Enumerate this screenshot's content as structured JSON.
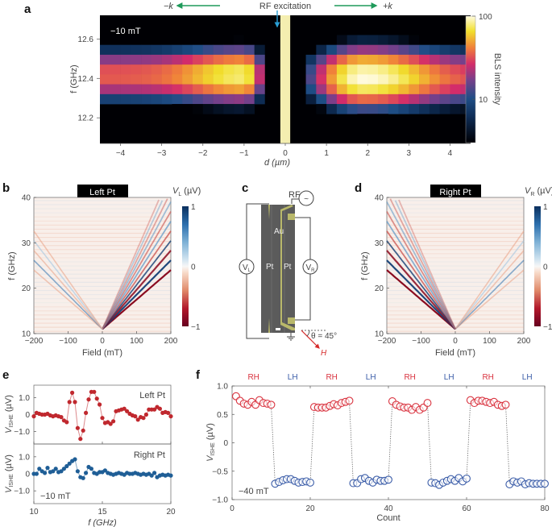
{
  "panel_labels": [
    "a",
    "b",
    "c",
    "d",
    "e",
    "f"
  ],
  "chart_data": [
    {
      "panel": "a",
      "type": "heatmap",
      "title": "",
      "xlabel": "d (µm)",
      "ylabel": "f (GHz)",
      "xlim": [
        -4.5,
        4.5
      ],
      "ylim": [
        12.07,
        12.72
      ],
      "xticks": [
        -4,
        -3,
        -2,
        -1,
        0,
        1,
        2,
        3,
        4
      ],
      "yticks": [
        12.2,
        12.4,
        12.6
      ],
      "annotations": {
        "field": "−10 mT",
        "rf_label": "RF excitation",
        "minus_k": "−k",
        "plus_k": "+k"
      },
      "colorbar": {
        "label": "BLS intensity",
        "scale": "log",
        "range": [
          3,
          100
        ],
        "ticks": [
          10,
          100
        ]
      },
      "excitation_strip_d": [
        -0.12,
        0.12
      ],
      "cell_width_um": 0.25,
      "rows_f": [
        12.69,
        12.64,
        12.59,
        12.54,
        12.49,
        12.44,
        12.39,
        12.34,
        12.29,
        12.24,
        12.19,
        12.14,
        12.09
      ],
      "left_profile": {
        "d_range": [
          -4.5,
          -0.5
        ],
        "peak_d": -1.0,
        "peak_f": 12.41,
        "peak": 80,
        "tail": 35,
        "f_width": 0.1
      },
      "right_profile": {
        "d_range": [
          0.5,
          4.5
        ],
        "peak_d": 1.9,
        "peak_f": 12.4,
        "peak": 100,
        "tail": 30,
        "f_width": 0.11
      }
    },
    {
      "panel": "b",
      "type": "heatmap",
      "title": "Left Pt",
      "xlabel": "Field (mT)",
      "ylabel": "f (GHz)",
      "xlim": [
        -200,
        200
      ],
      "ylim": [
        10,
        40
      ],
      "xticks": [
        -200,
        -100,
        0,
        100,
        200
      ],
      "yticks": [
        10,
        20,
        30,
        40
      ],
      "colorbar": {
        "label": "V_L (µV)",
        "label_main": "V",
        "label_sub": "L",
        "label_unit": " (µV)",
        "range": [
          -1,
          1
        ],
        "ticks": [
          1,
          0,
          -1
        ]
      },
      "f_min_GHz": 11,
      "dominant_side": "positive-field"
    },
    {
      "panel": "d",
      "type": "heatmap",
      "title": "Right Pt",
      "xlabel": "Field (mT)",
      "ylabel": "f (GHz)",
      "xlim": [
        -200,
        200
      ],
      "ylim": [
        10,
        40
      ],
      "xticks": [
        -200,
        -100,
        0,
        100,
        200
      ],
      "yticks": [
        10,
        20,
        30,
        40
      ],
      "colorbar": {
        "label": "V_R (µV)",
        "label_main": "V",
        "label_sub": "R",
        "label_unit": " (µV)",
        "range": [
          -1,
          1
        ],
        "ticks": [
          1,
          0,
          -1
        ]
      },
      "f_min_GHz": 11,
      "dominant_side": "negative-field"
    },
    {
      "panel": "e",
      "type": "line",
      "xlabel": "f (GHz)",
      "ylabel": "V_ISHE (µV)",
      "xlim": [
        10,
        20
      ],
      "ylim": [
        -1.75,
        1.75
      ],
      "xticks": [
        10,
        15,
        20
      ],
      "yticks": [
        1.0,
        0,
        -1.0
      ],
      "annotation": "−10 mT",
      "series": [
        {
          "name": "Left Pt",
          "color": "#c0282e",
          "x": [
            10.0,
            10.2,
            10.4,
            10.6,
            10.8,
            11.0,
            11.2,
            11.4,
            11.6,
            11.8,
            12.0,
            12.2,
            12.4,
            12.6,
            12.8,
            13.0,
            13.2,
            13.4,
            13.6,
            13.8,
            14.0,
            14.2,
            14.4,
            14.6,
            14.8,
            15.0,
            15.2,
            15.4,
            15.6,
            15.8,
            16.0,
            16.2,
            16.4,
            16.6,
            16.8,
            17.0,
            17.2,
            17.4,
            17.6,
            17.8,
            18.0,
            18.2,
            18.4,
            18.6,
            18.8,
            19.0,
            19.2,
            19.4,
            19.6,
            19.8,
            20.0
          ],
          "y": [
            -0.1,
            0.1,
            0.05,
            0.0,
            0.0,
            0.05,
            -0.05,
            -0.1,
            -0.05,
            -0.1,
            -0.15,
            -0.35,
            -0.45,
            0.75,
            1.3,
            0.75,
            -0.8,
            -1.45,
            -0.95,
            0.1,
            0.9,
            1.35,
            1.35,
            0.95,
            0.6,
            -0.2,
            -0.5,
            -0.45,
            -0.55,
            -0.4,
            0.2,
            0.25,
            0.3,
            0.35,
            0.2,
            0.05,
            -0.05,
            -0.1,
            -0.3,
            -0.15,
            -0.2,
            0.0,
            0.3,
            0.3,
            0.3,
            0.45,
            0.35,
            0.1,
            0.15,
            0.1,
            -0.1
          ]
        },
        {
          "name": "Right Pt",
          "color": "#1f5e96",
          "x": [
            10.0,
            10.2,
            10.4,
            10.6,
            10.8,
            11.0,
            11.2,
            11.4,
            11.6,
            11.8,
            12.0,
            12.2,
            12.4,
            12.6,
            12.8,
            13.0,
            13.2,
            13.4,
            13.6,
            13.8,
            14.0,
            14.2,
            14.4,
            14.6,
            14.8,
            15.0,
            15.2,
            15.4,
            15.6,
            15.8,
            16.0,
            16.2,
            16.4,
            16.6,
            16.8,
            17.0,
            17.2,
            17.4,
            17.6,
            17.8,
            18.0,
            18.2,
            18.4,
            18.6,
            18.8,
            19.0,
            19.2,
            19.4,
            19.6,
            19.8,
            20.0
          ],
          "y": [
            0.0,
            0.0,
            0.3,
            0.15,
            0.05,
            0.35,
            0.1,
            0.15,
            0.3,
            0.1,
            0.15,
            0.3,
            0.45,
            0.6,
            0.75,
            0.85,
            0.15,
            -0.2,
            -0.25,
            0.05,
            0.4,
            0.3,
            0.05,
            0.0,
            0.1,
            0.1,
            0.2,
            0.05,
            0.0,
            -0.05,
            0.0,
            0.05,
            0.0,
            -0.05,
            0.05,
            0.0,
            0.0,
            0.05,
            0.0,
            -0.05,
            0.0,
            -0.05,
            0.0,
            -0.1,
            0.05,
            -0.2,
            -0.1,
            -0.05,
            -0.1,
            -0.05,
            -0.1
          ]
        }
      ]
    },
    {
      "panel": "f",
      "type": "scatter",
      "xlabel": "Count",
      "ylabel": "V_ISHE (µV)",
      "xlim": [
        0,
        80
      ],
      "ylim": [
        -1.0,
        1.0
      ],
      "xticks": [
        0,
        20,
        40,
        60,
        80
      ],
      "yticks": [
        1.0,
        0.5,
        0,
        -0.5,
        -1.0
      ],
      "annotation": "−40 mT",
      "segment_labels": [
        "RH",
        "LH",
        "RH",
        "LH",
        "RH",
        "LH",
        "RH",
        "LH"
      ],
      "segment_colors": {
        "RH": "#d9333f",
        "LH": "#3a5ca8"
      },
      "series": [
        {
          "name": "RH",
          "x": [
            1,
            2,
            3,
            4,
            5,
            6,
            7,
            8,
            9,
            10
          ],
          "y": [
            0.82,
            0.74,
            0.69,
            0.67,
            0.72,
            0.67,
            0.75,
            0.7,
            0.69,
            0.67
          ]
        },
        {
          "name": "LH",
          "x": [
            11,
            12,
            13,
            14,
            15,
            16,
            17,
            18,
            19,
            20
          ],
          "y": [
            -0.72,
            -0.69,
            -0.66,
            -0.64,
            -0.64,
            -0.67,
            -0.7,
            -0.69,
            -0.68,
            -0.7
          ]
        },
        {
          "name": "RH",
          "x": [
            21,
            22,
            23,
            24,
            25,
            26,
            27,
            28,
            29,
            30
          ],
          "y": [
            0.63,
            0.62,
            0.62,
            0.62,
            0.65,
            0.68,
            0.66,
            0.7,
            0.72,
            0.74
          ]
        },
        {
          "name": "LH",
          "x": [
            31,
            32,
            33,
            34,
            35,
            36,
            37,
            38,
            39,
            40
          ],
          "y": [
            -0.71,
            -0.71,
            -0.64,
            -0.62,
            -0.67,
            -0.7,
            -0.65,
            -0.67,
            -0.67,
            -0.65
          ]
        },
        {
          "name": "RH",
          "x": [
            41,
            42,
            43,
            44,
            45,
            46,
            47,
            48,
            49,
            50
          ],
          "y": [
            0.73,
            0.67,
            0.64,
            0.62,
            0.62,
            0.58,
            0.63,
            0.58,
            0.62,
            0.7
          ]
        },
        {
          "name": "LH",
          "x": [
            51,
            52,
            53,
            54,
            55,
            56,
            57,
            58,
            59,
            60
          ],
          "y": [
            -0.7,
            -0.71,
            -0.74,
            -0.7,
            -0.67,
            -0.64,
            -0.67,
            -0.62,
            -0.68,
            -0.63
          ]
        },
        {
          "name": "RH",
          "x": [
            61,
            62,
            63,
            64,
            65,
            66,
            67,
            68,
            69,
            70
          ],
          "y": [
            0.75,
            0.7,
            0.74,
            0.74,
            0.72,
            0.7,
            0.72,
            0.67,
            0.65,
            0.67
          ]
        },
        {
          "name": "LH",
          "x": [
            71,
            72,
            73,
            74,
            75,
            76,
            77,
            78,
            79,
            80
          ],
          "y": [
            -0.73,
            -0.68,
            -0.7,
            -0.68,
            -0.73,
            -0.71,
            -0.72,
            -0.72,
            -0.72,
            -0.72
          ]
        }
      ]
    }
  ],
  "diagram_c": {
    "rf_label": "RF",
    "source_symbol": "~",
    "au_label": "Au",
    "pt_left_label": "Pt",
    "pt_right_label": "Pt",
    "vl_main": "V",
    "vl_sub": "L",
    "vr_main": "V",
    "vr_sub": "R",
    "theta_label": "θ = 45°",
    "field_label": "H",
    "colors": {
      "substrate": "#5b5b5b",
      "gold": "#b9b86a",
      "wire": "#444444",
      "field_arrow": "#d62b2b"
    }
  },
  "colors": {
    "k_arrow": "#1f9a5a",
    "rf_arrow": "#2a9fd6",
    "rf_strip": "#f4eeb0",
    "title_box_bg": "#000000",
    "title_box_fg": "#ffffff"
  }
}
